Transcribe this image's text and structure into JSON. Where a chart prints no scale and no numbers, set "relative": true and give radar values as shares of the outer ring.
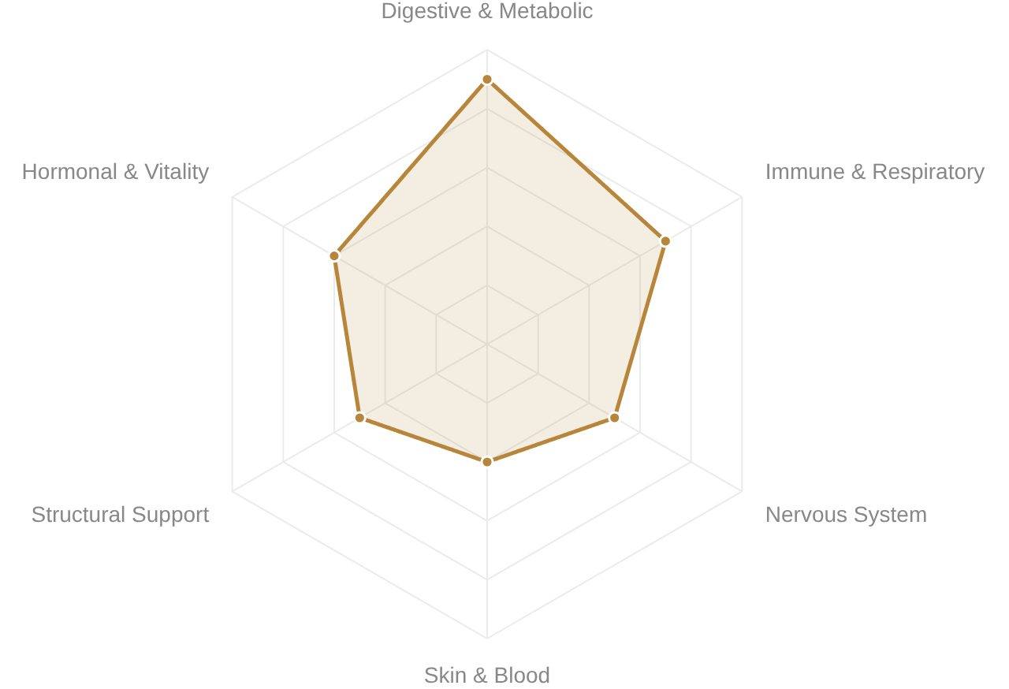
{
  "chart_data": {
    "type": "radar",
    "relative": true,
    "categories": [
      "Digestive & Metabolic",
      "Immune & Respiratory",
      "Nervous System",
      "Skin & Blood",
      "Structural Support",
      "Hormonal & Vitality"
    ],
    "series": [
      {
        "color": "#b8863b",
        "values": [
          0.9,
          0.7,
          0.5,
          0.4,
          0.5,
          0.6
        ]
      }
    ],
    "grid": true,
    "marker": "circle",
    "line_style": "solid"
  }
}
